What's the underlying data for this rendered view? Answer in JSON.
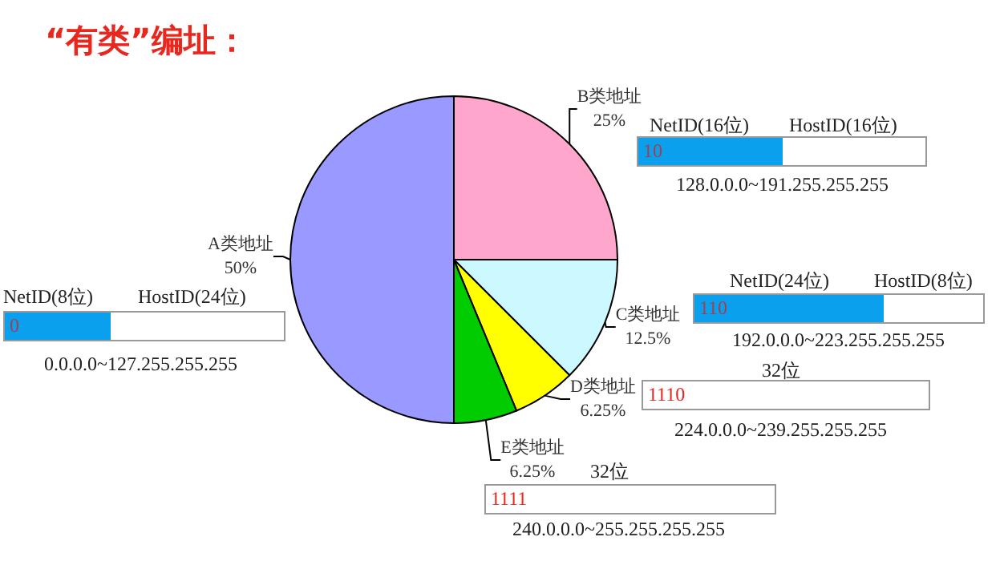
{
  "chart_data": {
    "type": "pie",
    "title": "“有类”编址：",
    "categories": [
      "A类地址",
      "B类地址",
      "C类地址",
      "D类地址",
      "E类地址"
    ],
    "values": [
      50,
      25,
      12.5,
      6.25,
      6.25
    ],
    "value_labels": [
      "50%",
      "25%",
      "12.5%",
      "6.25%",
      "6.25%"
    ],
    "colors": [
      "#9999ff",
      "#ffa6cc",
      "#ccf8ff",
      "#ffff00",
      "#00cc00"
    ],
    "legend": false,
    "annotations": [
      "NetID(8位)",
      "HostID(24位)",
      "0",
      "0.0.0.0~127.255.255.255",
      "NetID(16位)",
      "HostID(16位)",
      "10",
      "128.0.0.0~191.255.255.255",
      "NetID(24位)",
      "HostID(8位)",
      "110",
      "192.0.0.0~223.255.255.255",
      "32位",
      "1110",
      "224.0.0.0~239.255.255.255",
      "32位",
      "1111",
      "240.0.0.0~255.255.255.255"
    ]
  }
}
